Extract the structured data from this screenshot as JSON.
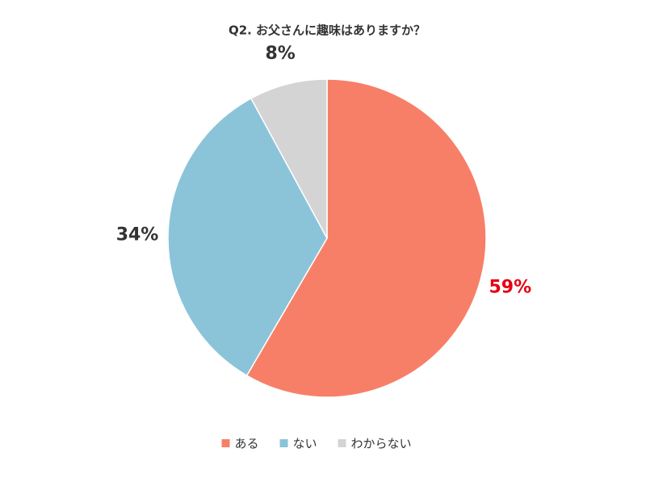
{
  "chart_data": {
    "type": "pie",
    "title": "Q2. お父さんに趣味はありますか？",
    "categories": [
      "ある",
      "ない",
      "わからない"
    ],
    "values": [
      59,
      34,
      8
    ],
    "value_labels": [
      "59%",
      "34%",
      "8%"
    ],
    "colors": [
      "#f77f68",
      "#8bc4d8",
      "#d4d4d4"
    ],
    "value_label_colors": [
      "#e60012",
      "#333333",
      "#333333"
    ]
  }
}
